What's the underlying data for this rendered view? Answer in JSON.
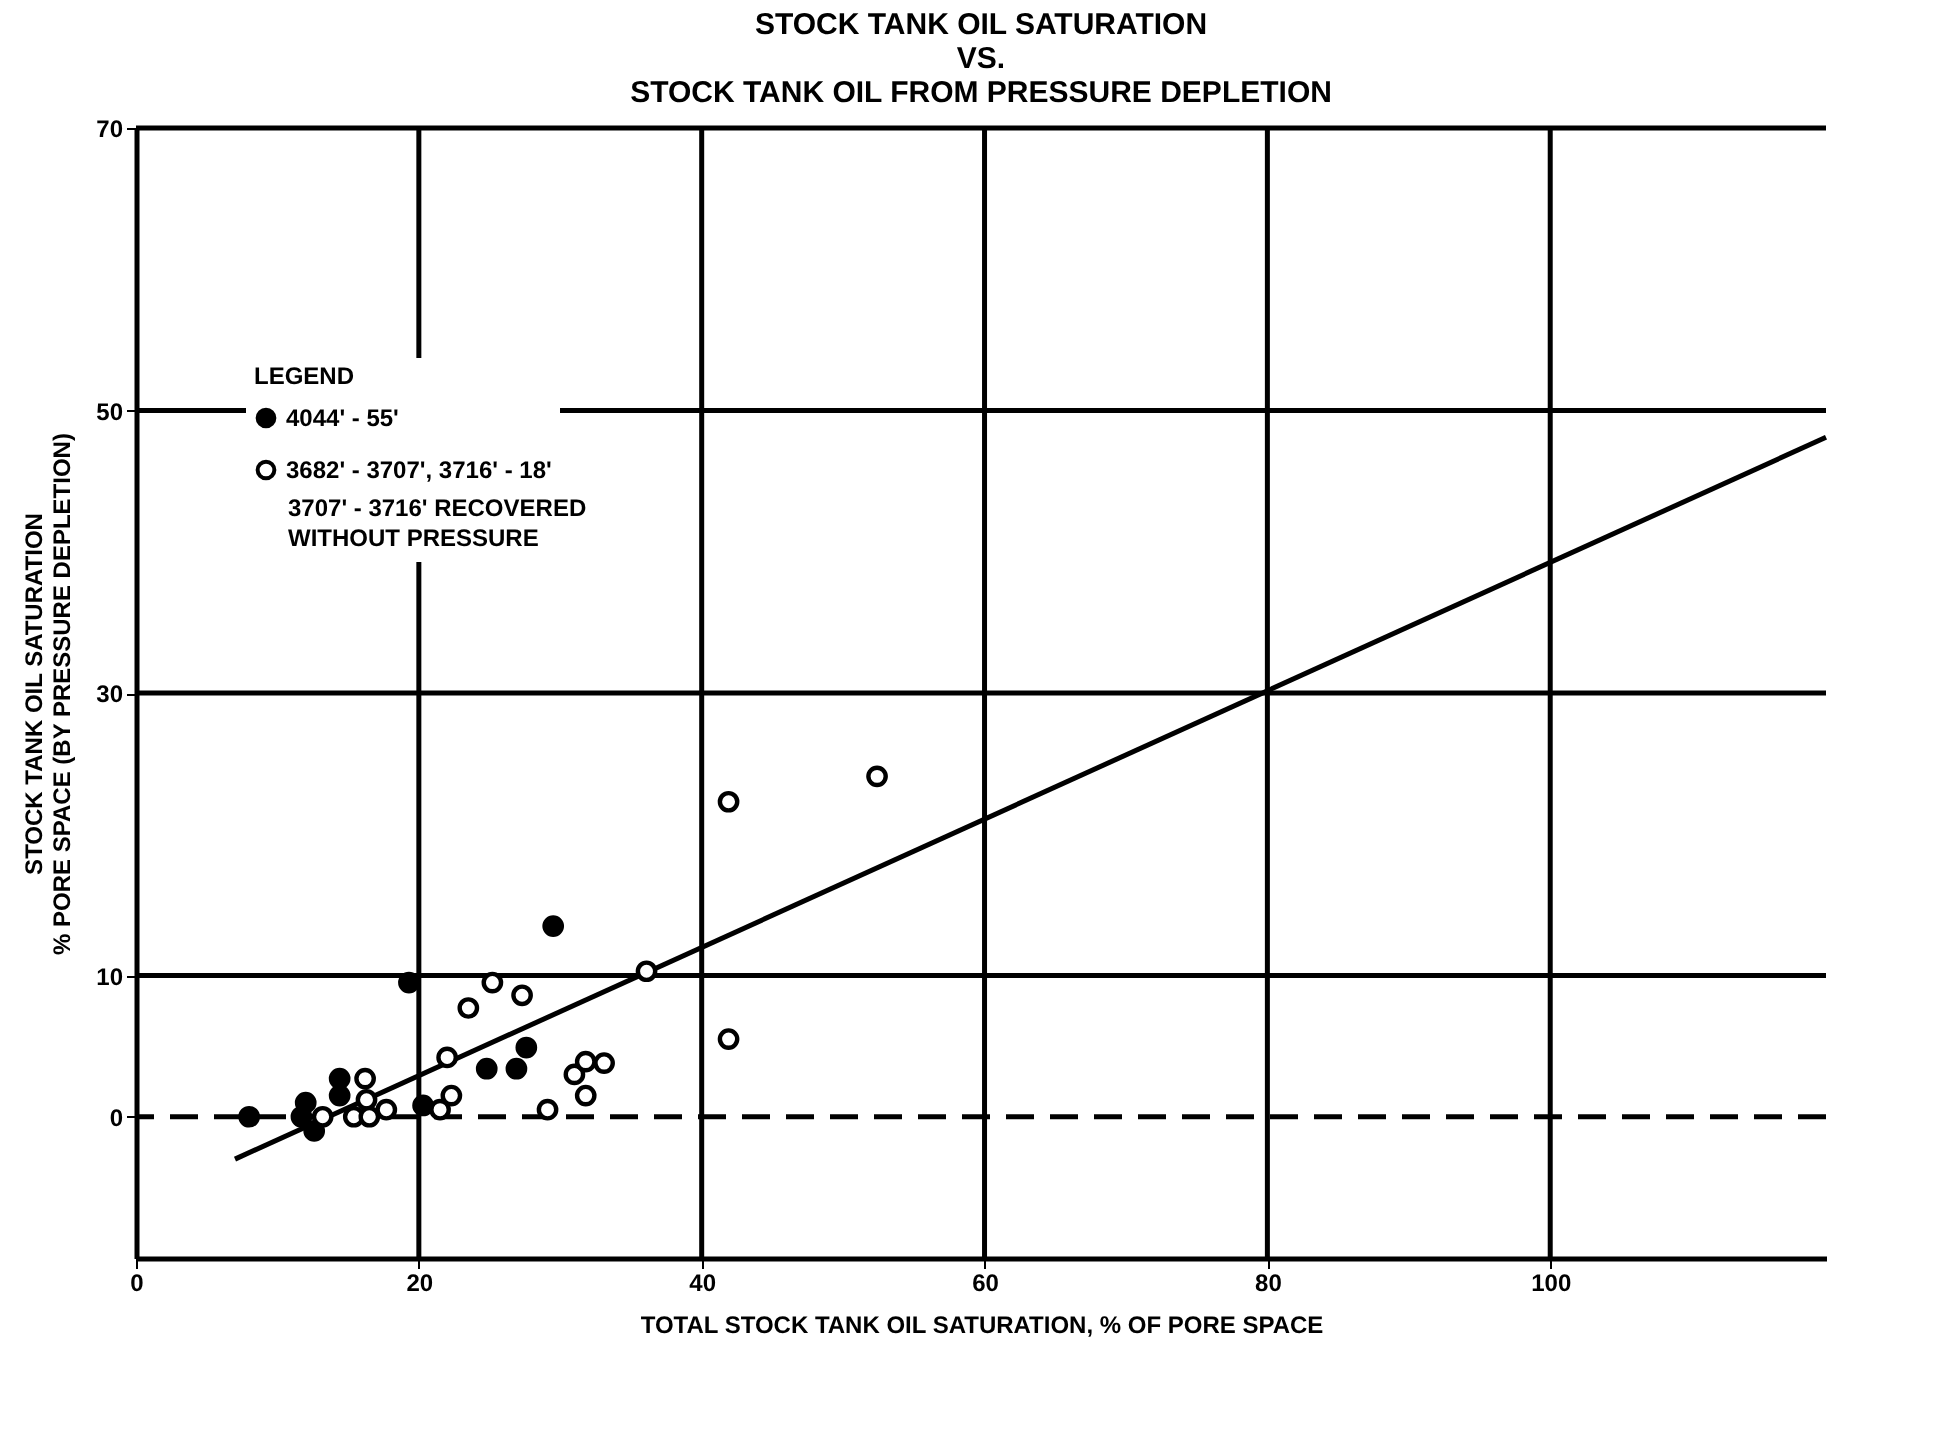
{
  "chart_data": {
    "type": "scatter",
    "title": "STOCK TANK OIL SATURATION\nVS.\nSTOCK TANK OIL FROM PRESSURE DEPLETION",
    "xlabel": "TOTAL STOCK TANK OIL SATURATION, % OF PORE SPACE",
    "ylabel": "STOCK TANK OIL SATURATION\n% PORE SPACE (BY PRESSURE DEPLETION)",
    "legend_title": "LEGEND",
    "annotations": [
      "3707' - 3716' RECOVERED\nWITHOUT PRESSURE"
    ],
    "xlim": [
      0,
      119.5
    ],
    "ylim": [
      -10,
      70
    ],
    "xticks": [
      0,
      20,
      40,
      60,
      80,
      100
    ],
    "yticks": [
      0,
      10,
      30,
      50,
      70
    ],
    "grid": true,
    "legend": "top left",
    "marker": "circle",
    "ref_lines": [
      {
        "axis": "y",
        "value": 0,
        "line_style": "dashed",
        "color": "#000000"
      }
    ],
    "series": [
      {
        "name": "4044' - 55'",
        "color": "#000000",
        "x": [
          8.0,
          12.0,
          11.7,
          12.6,
          14.4,
          14.4,
          19.3,
          20.3,
          24.8,
          26.9,
          27.6,
          29.5
        ],
        "values": [
          0,
          1.0,
          0,
          -1.0,
          2.7,
          1.5,
          9.5,
          0.8,
          3.4,
          3.4,
          4.9,
          13.5
        ]
      },
      {
        "name": "3682' - 3707', 3716' - 18'",
        "color": "#000000",
        "x": [
          13.2,
          15.4,
          16.2,
          16.3,
          16.5,
          17.7,
          21.5,
          22.0,
          22.3,
          23.5,
          25.2,
          27.3,
          29.1,
          31.0,
          31.8,
          31.8,
          33.1,
          36.1,
          41.9,
          41.9,
          52.4
        ],
        "values": [
          0,
          0,
          2.7,
          1.2,
          0,
          0.5,
          0.5,
          4.2,
          1.5,
          7.7,
          9.5,
          8.6,
          0.5,
          3.0,
          3.9,
          1.5,
          3.8,
          10.3,
          22.3,
          5.5,
          24.1
        ]
      },
      {
        "type": "line",
        "marker": "none",
        "color": "#000000",
        "x": [
          7.0,
          119.5
        ],
        "values": [
          -3.0,
          48.1
        ]
      }
    ]
  }
}
